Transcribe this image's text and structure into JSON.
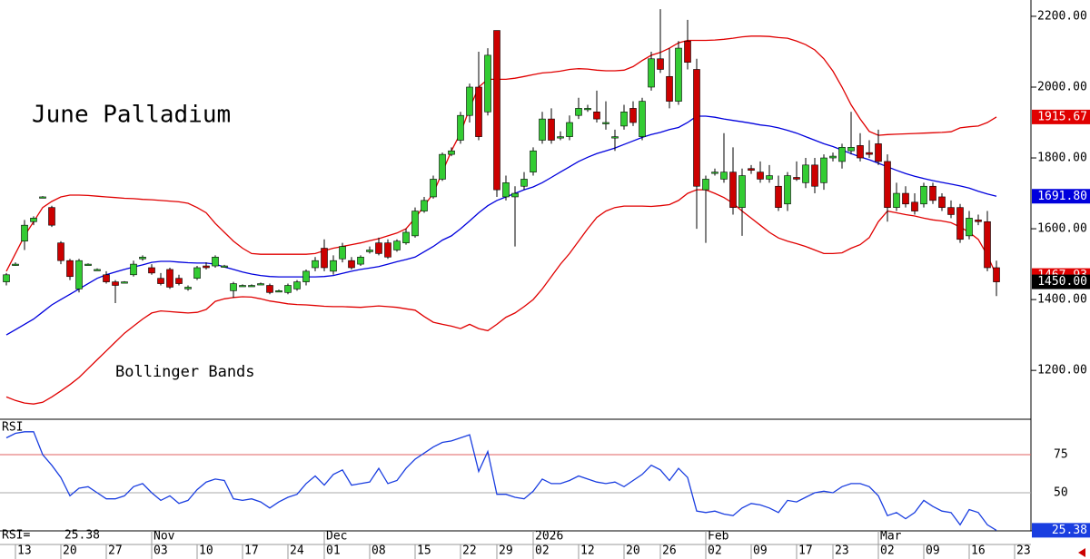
{
  "chart_data": {
    "type": "candlestick",
    "title": "June Palladium",
    "annotation": "Bollinger Bands",
    "up_color": "#33cc33",
    "down_color": "#cc0000",
    "last_label": "1450.00",
    "ohlc": [
      [
        1450,
        1475,
        1440,
        1470
      ],
      [
        1500,
        1505,
        1495,
        1500
      ],
      [
        1565,
        1625,
        1540,
        1610
      ],
      [
        1620,
        1635,
        1610,
        1630
      ],
      [
        1690,
        1692,
        1686,
        1690
      ],
      [
        1660,
        1665,
        1605,
        1610
      ],
      [
        1560,
        1565,
        1500,
        1510
      ],
      [
        1510,
        1515,
        1455,
        1465
      ],
      [
        1430,
        1515,
        1420,
        1510
      ],
      [
        1500,
        1502,
        1498,
        1500
      ],
      [
        1485,
        1488,
        1482,
        1485
      ],
      [
        1470,
        1480,
        1445,
        1450
      ],
      [
        1450,
        1455,
        1390,
        1440
      ],
      [
        1450,
        1452,
        1448,
        1450
      ],
      [
        1470,
        1510,
        1465,
        1500
      ],
      [
        1515,
        1525,
        1510,
        1520
      ],
      [
        1490,
        1500,
        1470,
        1475
      ],
      [
        1460,
        1475,
        1440,
        1445
      ],
      [
        1485,
        1490,
        1430,
        1435
      ],
      [
        1460,
        1470,
        1440,
        1445
      ],
      [
        1430,
        1440,
        1425,
        1435
      ],
      [
        1460,
        1495,
        1455,
        1490
      ],
      [
        1495,
        1505,
        1485,
        1490
      ],
      [
        1495,
        1525,
        1490,
        1520
      ],
      [
        1495,
        1498,
        1492,
        1495
      ],
      [
        1425,
        1450,
        1405,
        1445
      ],
      [
        1440,
        1443,
        1437,
        1440
      ],
      [
        1440,
        1443,
        1437,
        1440
      ],
      [
        1445,
        1448,
        1442,
        1445
      ],
      [
        1440,
        1445,
        1415,
        1420
      ],
      [
        1425,
        1428,
        1422,
        1425
      ],
      [
        1420,
        1445,
        1415,
        1440
      ],
      [
        1430,
        1455,
        1425,
        1450
      ],
      [
        1450,
        1485,
        1440,
        1480
      ],
      [
        1490,
        1520,
        1480,
        1510
      ],
      [
        1545,
        1570,
        1480,
        1490
      ],
      [
        1480,
        1525,
        1470,
        1510
      ],
      [
        1515,
        1560,
        1505,
        1550
      ],
      [
        1510,
        1520,
        1485,
        1490
      ],
      [
        1500,
        1525,
        1495,
        1520
      ],
      [
        1535,
        1550,
        1530,
        1540
      ],
      [
        1560,
        1575,
        1525,
        1530
      ],
      [
        1560,
        1570,
        1515,
        1520
      ],
      [
        1540,
        1570,
        1535,
        1565
      ],
      [
        1560,
        1600,
        1555,
        1590
      ],
      [
        1580,
        1660,
        1575,
        1650
      ],
      [
        1650,
        1690,
        1645,
        1680
      ],
      [
        1690,
        1750,
        1685,
        1740
      ],
      [
        1740,
        1815,
        1735,
        1810
      ],
      [
        1810,
        1830,
        1805,
        1820
      ],
      [
        1850,
        1930,
        1840,
        1920
      ],
      [
        1920,
        2010,
        1900,
        2000
      ],
      [
        2000,
        2100,
        1850,
        1860
      ],
      [
        1930,
        2110,
        1920,
        2090
      ],
      [
        2160,
        2160,
        1690,
        1710
      ],
      [
        1690,
        1750,
        1680,
        1730
      ],
      [
        1690,
        1720,
        1550,
        1700
      ],
      [
        1720,
        1760,
        1710,
        1740
      ],
      [
        1760,
        1830,
        1750,
        1820
      ],
      [
        1850,
        1930,
        1840,
        1910
      ],
      [
        1910,
        1940,
        1840,
        1850
      ],
      [
        1860,
        1875,
        1850,
        1860
      ],
      [
        1860,
        1920,
        1850,
        1900
      ],
      [
        1920,
        1970,
        1910,
        1940
      ],
      [
        1940,
        1950,
        1930,
        1940
      ],
      [
        1930,
        1990,
        1900,
        1910
      ],
      [
        1900,
        1960,
        1880,
        1900
      ],
      [
        1860,
        1880,
        1820,
        1860
      ],
      [
        1890,
        1950,
        1880,
        1930
      ],
      [
        1940,
        1960,
        1890,
        1900
      ],
      [
        1860,
        1970,
        1850,
        1960
      ],
      [
        2000,
        2100,
        1990,
        2080
      ],
      [
        2080,
        2220,
        2040,
        2050
      ],
      [
        2030,
        2110,
        1940,
        1960
      ],
      [
        1960,
        2130,
        1950,
        2110
      ],
      [
        2130,
        2190,
        2050,
        2070
      ],
      [
        2050,
        2080,
        1600,
        1720
      ],
      [
        1710,
        1750,
        1560,
        1740
      ],
      [
        1760,
        1770,
        1750,
        1760
      ],
      [
        1740,
        1870,
        1730,
        1760
      ],
      [
        1760,
        1830,
        1640,
        1660
      ],
      [
        1660,
        1770,
        1580,
        1750
      ],
      [
        1770,
        1780,
        1755,
        1765
      ],
      [
        1760,
        1790,
        1730,
        1740
      ],
      [
        1740,
        1780,
        1730,
        1750
      ],
      [
        1720,
        1750,
        1650,
        1660
      ],
      [
        1670,
        1760,
        1650,
        1750
      ],
      [
        1745,
        1790,
        1735,
        1740
      ],
      [
        1730,
        1800,
        1715,
        1780
      ],
      [
        1780,
        1800,
        1700,
        1720
      ],
      [
        1730,
        1810,
        1710,
        1800
      ],
      [
        1800,
        1815,
        1790,
        1805
      ],
      [
        1790,
        1840,
        1770,
        1830
      ],
      [
        1820,
        1930,
        1810,
        1830
      ],
      [
        1835,
        1870,
        1790,
        1800
      ],
      [
        1815,
        1850,
        1800,
        1810
      ],
      [
        1840,
        1880,
        1780,
        1790
      ],
      [
        1790,
        1810,
        1620,
        1660
      ],
      [
        1660,
        1730,
        1650,
        1700
      ],
      [
        1700,
        1720,
        1660,
        1670
      ],
      [
        1675,
        1700,
        1640,
        1650
      ],
      [
        1670,
        1730,
        1660,
        1720
      ],
      [
        1720,
        1730,
        1670,
        1680
      ],
      [
        1690,
        1700,
        1650,
        1660
      ],
      [
        1660,
        1680,
        1630,
        1640
      ],
      [
        1660,
        1670,
        1560,
        1570
      ],
      [
        1580,
        1650,
        1570,
        1630
      ],
      [
        1625,
        1640,
        1610,
        1620
      ],
      [
        1620,
        1650,
        1480,
        1490
      ],
      [
        1490,
        1510,
        1410,
        1450
      ]
    ],
    "bands": [
      {
        "color": "#e00000",
        "values": [
          1480,
          1530,
          1580,
          1620,
          1660,
          1677,
          1690,
          1695,
          1695,
          1694,
          1692,
          1690,
          1688,
          1686,
          1685,
          1683,
          1682,
          1680,
          1678,
          1676,
          1672,
          1660,
          1645,
          1615,
          1590,
          1565,
          1545,
          1530,
          1528,
          1528,
          1528,
          1528,
          1528,
          1528,
          1530,
          1538,
          1545,
          1550,
          1555,
          1560,
          1566,
          1572,
          1580,
          1588,
          1600,
          1630,
          1665,
          1700,
          1760,
          1820,
          1870,
          1940,
          2000,
          2022,
          2022,
          2022,
          2025,
          2030,
          2035,
          2040,
          2042,
          2045,
          2050,
          2052,
          2051,
          2048,
          2046,
          2046,
          2048,
          2058,
          2075,
          2090,
          2098,
          2110,
          2125,
          2132,
          2132,
          2132,
          2133,
          2135,
          2138,
          2142,
          2144,
          2144,
          2143,
          2140,
          2138,
          2130,
          2120,
          2105,
          2080,
          2045,
          2000,
          1950,
          1910,
          1875,
          1864,
          1866,
          1867,
          1868,
          1869,
          1870,
          1871,
          1872,
          1874,
          1885,
          1888,
          1890,
          1900,
          1915.67
        ]
      },
      {
        "color": "#0000dd",
        "last_label": "1691.80",
        "values": [
          1300,
          1315,
          1330,
          1345,
          1365,
          1385,
          1400,
          1415,
          1430,
          1445,
          1460,
          1470,
          1478,
          1485,
          1492,
          1498,
          1505,
          1508,
          1508,
          1506,
          1504,
          1503,
          1503,
          1500,
          1492,
          1485,
          1478,
          1472,
          1468,
          1465,
          1464,
          1464,
          1464,
          1464,
          1464,
          1465,
          1468,
          1474,
          1480,
          1485,
          1489,
          1493,
          1500,
          1507,
          1513,
          1520,
          1535,
          1550,
          1568,
          1580,
          1600,
          1622,
          1645,
          1665,
          1680,
          1690,
          1700,
          1710,
          1718,
          1730,
          1745,
          1760,
          1775,
          1790,
          1802,
          1812,
          1820,
          1828,
          1838,
          1848,
          1858,
          1866,
          1872,
          1880,
          1886,
          1900,
          1918,
          1918,
          1915,
          1910,
          1906,
          1902,
          1898,
          1893,
          1890,
          1885,
          1878,
          1870,
          1860,
          1850,
          1840,
          1832,
          1822,
          1812,
          1803,
          1795,
          1785,
          1775,
          1765,
          1756,
          1748,
          1742,
          1736,
          1731,
          1726,
          1721,
          1715,
          1706,
          1698,
          1691.8
        ]
      },
      {
        "color": "#e00000",
        "values": [
          1125,
          1115,
          1108,
          1105,
          1110,
          1125,
          1142,
          1160,
          1180,
          1205,
          1230,
          1255,
          1280,
          1305,
          1325,
          1345,
          1362,
          1368,
          1366,
          1364,
          1362,
          1364,
          1372,
          1395,
          1402,
          1406,
          1408,
          1407,
          1402,
          1396,
          1392,
          1388,
          1386,
          1385,
          1383,
          1381,
          1380,
          1380,
          1379,
          1378,
          1380,
          1382,
          1380,
          1378,
          1374,
          1370,
          1352,
          1336,
          1330,
          1325,
          1318,
          1330,
          1318,
          1312,
          1330,
          1350,
          1362,
          1380,
          1400,
          1430,
          1465,
          1500,
          1530,
          1565,
          1600,
          1632,
          1650,
          1660,
          1664,
          1664,
          1664,
          1663,
          1665,
          1668,
          1680,
          1700,
          1710,
          1710,
          1700,
          1688,
          1672,
          1650,
          1630,
          1610,
          1590,
          1574,
          1565,
          1558,
          1550,
          1540,
          1530,
          1530,
          1532,
          1545,
          1555,
          1575,
          1620,
          1650,
          1645,
          1640,
          1636,
          1630,
          1625,
          1622,
          1617,
          1605,
          1590,
          1570,
          1525,
          1467.93
        ]
      }
    ],
    "ylim": [
      1062,
      2246
    ],
    "yticks": [
      {
        "value": 1200,
        "label": "1200.00"
      },
      {
        "value": 1400,
        "label": "1400.00"
      },
      {
        "value": 1600,
        "label": "1600.00"
      },
      {
        "value": 1800,
        "label": "1800.00"
      },
      {
        "value": 2000,
        "label": "2000.00"
      },
      {
        "value": 2200,
        "label": "2200.00"
      }
    ],
    "xlim": [
      -0.7,
      112.8
    ],
    "xticks": [
      {
        "value": 2,
        "label": "13"
      },
      {
        "value": 7,
        "label": "20"
      },
      {
        "value": 12,
        "label": "27"
      },
      {
        "value": 17,
        "label": "03"
      },
      {
        "value": 22,
        "label": "10"
      },
      {
        "value": 27,
        "label": "17"
      },
      {
        "value": 32,
        "label": "24"
      },
      {
        "value": 36,
        "label": "01"
      },
      {
        "value": 41,
        "label": "08"
      },
      {
        "value": 46,
        "label": "15"
      },
      {
        "value": 51,
        "label": "22"
      },
      {
        "value": 55,
        "label": "29"
      },
      {
        "value": 59,
        "label": "02"
      },
      {
        "value": 64,
        "label": "12"
      },
      {
        "value": 69,
        "label": "20"
      },
      {
        "value": 73,
        "label": "26"
      },
      {
        "value": 78,
        "label": "02"
      },
      {
        "value": 83,
        "label": "09"
      },
      {
        "value": 88,
        "label": "17"
      },
      {
        "value": 92,
        "label": "23"
      },
      {
        "value": 97,
        "label": "02"
      },
      {
        "value": 102,
        "label": "09"
      },
      {
        "value": 107,
        "label": "16"
      },
      {
        "value": 112,
        "label": "23"
      }
    ],
    "month_ticks": [
      {
        "value": 17,
        "label": "Nov"
      },
      {
        "value": 36,
        "label": "Dec"
      },
      {
        "value": 59,
        "label": "2026"
      },
      {
        "value": 78,
        "label": "Feb"
      },
      {
        "value": 97,
        "label": "Mar"
      }
    ],
    "rsi": {
      "label": "RSI",
      "readout_label": "RSI=",
      "color": "#1a3ee0",
      "values": [
        86,
        89,
        90,
        90,
        75,
        68,
        60,
        48,
        53,
        54,
        50,
        46,
        46,
        48,
        54,
        56,
        50,
        45,
        48,
        43,
        45,
        52,
        57,
        59,
        58,
        46,
        45,
        46,
        44,
        40,
        44,
        47,
        49,
        56,
        61,
        55,
        62,
        65,
        55,
        56,
        57,
        66,
        56,
        58,
        66,
        72,
        76,
        80,
        83,
        84,
        86,
        88,
        64,
        77,
        49,
        49,
        47,
        46,
        51,
        59,
        56,
        56,
        58,
        61,
        59,
        57,
        56,
        57,
        54,
        58,
        62,
        68,
        65,
        58,
        66,
        60,
        38,
        37,
        38,
        36,
        35,
        40,
        43,
        42,
        40,
        37,
        45,
        44,
        47,
        50,
        51,
        50,
        54,
        56,
        56,
        54,
        48,
        35,
        37,
        33,
        37,
        45,
        41,
        38,
        37,
        29,
        39,
        37,
        29,
        25.38
      ],
      "ylim": [
        25,
        98.2
      ],
      "yticks": [
        50,
        75
      ],
      "tick_colors": [
        "#aaaaaa",
        "#e06060"
      ]
    }
  }
}
